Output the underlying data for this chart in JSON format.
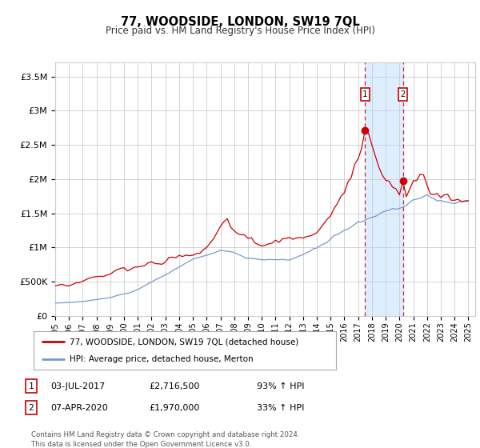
{
  "title": "77, WOODSIDE, LONDON, SW19 7QL",
  "subtitle": "Price paid vs. HM Land Registry's House Price Index (HPI)",
  "ylim": [
    0,
    3700000
  ],
  "yticks": [
    0,
    500000,
    1000000,
    1500000,
    2000000,
    2500000,
    3000000,
    3500000
  ],
  "ytick_labels": [
    "£0",
    "£500K",
    "£1M",
    "£1.5M",
    "£2M",
    "£2.5M",
    "£3M",
    "£3.5M"
  ],
  "xlim_start": 1995.0,
  "xlim_end": 2025.5,
  "xtick_years": [
    1995,
    1996,
    1997,
    1998,
    1999,
    2000,
    2001,
    2002,
    2003,
    2004,
    2005,
    2006,
    2007,
    2008,
    2009,
    2010,
    2011,
    2012,
    2013,
    2014,
    2015,
    2016,
    2017,
    2018,
    2019,
    2020,
    2021,
    2022,
    2023,
    2024,
    2025
  ],
  "red_line_color": "#cc0000",
  "blue_line_color": "#7799cc",
  "grid_color": "#cccccc",
  "shaded_region_color": "#ddeeff",
  "marker1_year": 2017.5,
  "marker2_year": 2020.25,
  "marker1_price": 2716500,
  "marker2_price": 1970000,
  "legend_label_red": "77, WOODSIDE, LONDON, SW19 7QL (detached house)",
  "legend_label_blue": "HPI: Average price, detached house, Merton",
  "table_row1": [
    "1",
    "03-JUL-2017",
    "£2,716,500",
    "93% ↑ HPI"
  ],
  "table_row2": [
    "2",
    "07-APR-2020",
    "£1,970,000",
    "33% ↑ HPI"
  ],
  "footer": "Contains HM Land Registry data © Crown copyright and database right 2024.\nThis data is licensed under the Open Government Licence v3.0.",
  "background_color": "#ffffff"
}
